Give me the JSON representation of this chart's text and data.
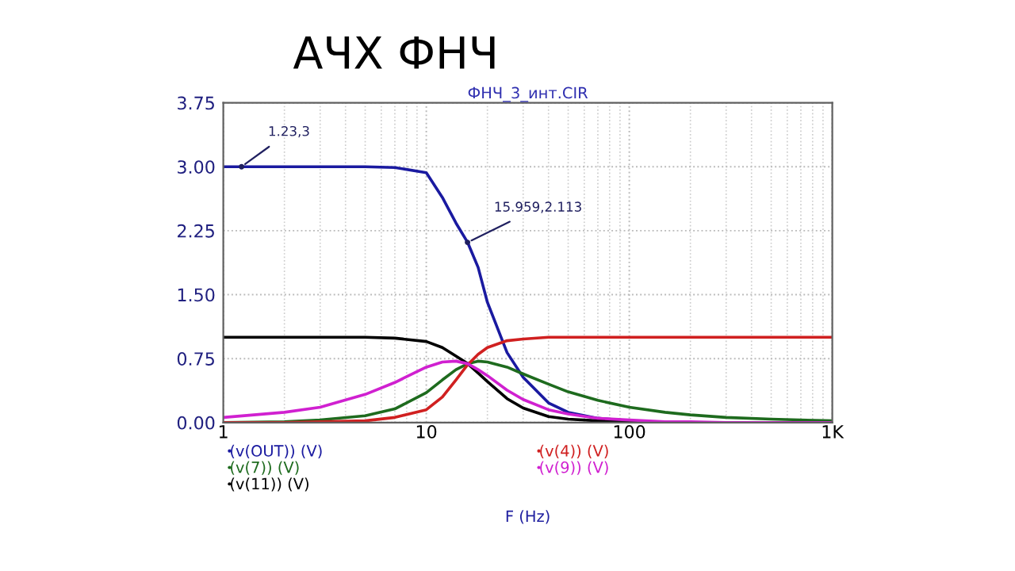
{
  "chart_data": {
    "type": "line",
    "title": "АЧХ ФНЧ",
    "subtitle": "ФНЧ_3_инт.CIR",
    "xlabel": "F (Hz)",
    "log": "x",
    "grid": true,
    "legend": "bottom",
    "line_style": "solid",
    "xlim": [
      1,
      1000
    ],
    "xticks": [
      1,
      10,
      100,
      {
        "value": 1000,
        "label": "1K"
      }
    ],
    "ylim": [
      0,
      3.75
    ],
    "yticks": [
      {
        "value": 0,
        "label": "0.00"
      },
      {
        "value": 0.75,
        "label": "0.75"
      },
      {
        "value": 1.5,
        "label": "1.50"
      },
      {
        "value": 2.25,
        "label": "2.25"
      },
      {
        "value": 3,
        "label": "3.00"
      },
      {
        "value": 3.75,
        "label": "3.75"
      }
    ],
    "x": [
      1,
      2,
      3,
      5,
      7,
      10,
      12,
      14,
      16,
      18,
      20,
      25,
      30,
      40,
      50,
      70,
      100,
      150,
      200,
      300,
      500,
      1000
    ],
    "series": [
      {
        "name": "(v(OUT)) (V)",
        "color": "#1a1aa0",
        "values": [
          3.0,
          3.0,
          3.0,
          3.0,
          2.99,
          2.93,
          2.64,
          2.34,
          2.11,
          1.82,
          1.41,
          0.82,
          0.53,
          0.23,
          0.12,
          0.05,
          0.02,
          null,
          null,
          null,
          null,
          null
        ]
      },
      {
        "name": "(v(7)) (V)",
        "color": "#1e6b1e",
        "values": [
          0,
          0.01,
          0.03,
          0.08,
          0.16,
          0.35,
          0.5,
          0.62,
          0.69,
          0.72,
          0.71,
          0.65,
          0.57,
          0.45,
          0.36,
          0.26,
          0.18,
          0.12,
          0.09,
          0.06,
          0.04,
          0.02
        ]
      },
      {
        "name": "(v(11)) (V)",
        "color": "#000000",
        "values": [
          1.0,
          1.0,
          1.0,
          1.0,
          0.99,
          0.95,
          0.88,
          0.78,
          0.69,
          0.58,
          0.48,
          0.28,
          0.17,
          0.07,
          0.04,
          0.02,
          0.01,
          0,
          0,
          0,
          0,
          0
        ]
      },
      {
        "name": "(v(4)) (V)",
        "color": "#d02020",
        "values": [
          0,
          0,
          0.01,
          0.02,
          0.06,
          0.15,
          0.3,
          0.5,
          0.68,
          0.8,
          0.88,
          0.96,
          0.98,
          1.0,
          1.0,
          1.0,
          1.0,
          1.0,
          1.0,
          1.0,
          1.0,
          1.0
        ]
      },
      {
        "name": "(v(9)) (V)",
        "color": "#d020d0",
        "values": [
          0.06,
          0.12,
          0.18,
          0.33,
          0.47,
          0.65,
          0.71,
          0.72,
          0.69,
          0.62,
          0.55,
          0.38,
          0.27,
          0.15,
          0.1,
          0.05,
          0.03,
          0.01,
          0.01,
          0,
          0,
          0
        ]
      }
    ],
    "annotations": [
      {
        "text": "1.23,3",
        "x": 1.23,
        "y": 3
      },
      {
        "text": "15.959,2.113",
        "x": 15.959,
        "y": 2.113
      }
    ]
  }
}
